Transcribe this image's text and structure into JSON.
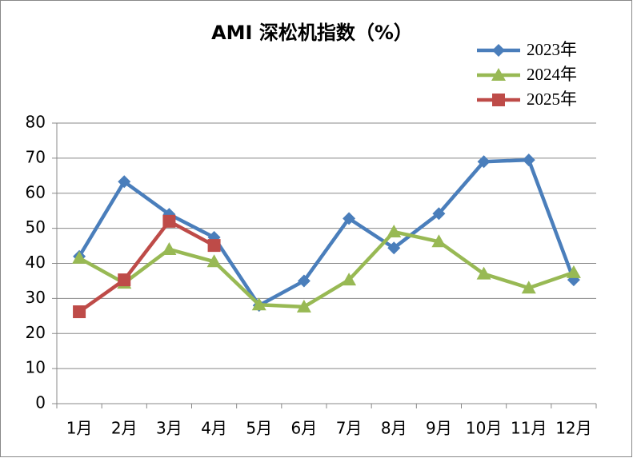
{
  "chart_data": {
    "type": "line",
    "title": "AMI 深松机指数（%）",
    "categories": [
      "1月",
      "2月",
      "3月",
      "4月",
      "5月",
      "6月",
      "7月",
      "8月",
      "9月",
      "10月",
      "11月",
      "12月"
    ],
    "series": [
      {
        "name": "2023年",
        "color": "#4a7ebb",
        "marker": "diamond",
        "values": [
          42,
          63.3,
          54,
          47.4,
          28,
          35,
          52.8,
          44.4,
          54.2,
          69,
          69.5,
          35.3
        ]
      },
      {
        "name": "2024年",
        "color": "#98b954",
        "marker": "triangle",
        "values": [
          41.5,
          34.4,
          44,
          40.5,
          28.2,
          27.6,
          35.3,
          49,
          46.2,
          37,
          33,
          37.4
        ]
      },
      {
        "name": "2025年",
        "color": "#be4b48",
        "marker": "square",
        "values": [
          26.2,
          35.3,
          52,
          45.1,
          null,
          null,
          null,
          null,
          null,
          null,
          null,
          null
        ]
      }
    ],
    "ylim": [
      0,
      80
    ],
    "yticks": [
      0,
      10,
      20,
      30,
      40,
      50,
      60,
      70,
      80
    ],
    "grid": true,
    "legend": "top-right"
  }
}
